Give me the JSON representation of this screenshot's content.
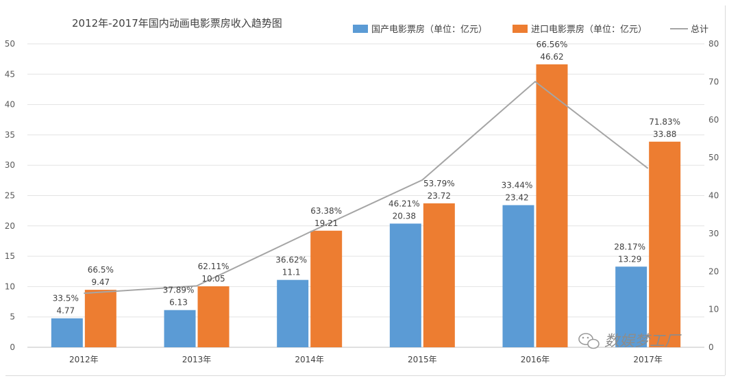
{
  "chart_data": {
    "type": "bar",
    "title": "2012年-2017年国内动画电影票房收入趋势图",
    "categories": [
      "2012年",
      "2013年",
      "2014年",
      "2015年",
      "2016年",
      "2017年"
    ],
    "series": [
      {
        "name": "国产电影票房（单位：亿元）",
        "axis": "left",
        "color": "#5b9bd5",
        "values": [
          4.77,
          6.13,
          11.1,
          20.38,
          23.42,
          13.29
        ],
        "value_labels": [
          "4.77",
          "6.13",
          "11.1",
          "20.38",
          "23.42",
          "13.29"
        ],
        "share_labels": [
          "33.5%",
          "37.89%",
          "36.62%",
          "46.21%",
          "33.44%",
          "28.17%"
        ]
      },
      {
        "name": "进口电影票房（单位：亿元）",
        "axis": "left",
        "color": "#ed7d31",
        "values": [
          9.47,
          10.05,
          19.21,
          23.72,
          46.62,
          33.88
        ],
        "value_labels": [
          "9.47",
          "10.05",
          "19.21",
          "23.72",
          "46.62",
          "33.88"
        ],
        "share_labels": [
          "66.5%",
          "62.11%",
          "63.38%",
          "53.79%",
          "66.56%",
          "71.83%"
        ]
      },
      {
        "name": "总计",
        "type": "line",
        "axis": "right",
        "color": "#a5a5a5",
        "values": [
          14.24,
          16.18,
          30.31,
          44.1,
          70.04,
          47.17
        ]
      }
    ],
    "y_left": {
      "min": 0,
      "max": 50,
      "step": 5,
      "ticks": [
        "0",
        "5",
        "10",
        "15",
        "20",
        "25",
        "30",
        "35",
        "40",
        "45",
        "50"
      ]
    },
    "y_right": {
      "min": 0,
      "max": 80,
      "step": 10,
      "ticks": [
        "0",
        "10",
        "20",
        "30",
        "40",
        "50",
        "60",
        "70",
        "80"
      ]
    },
    "grid": true,
    "legend_position": "top-right"
  },
  "watermark": {
    "text": "数娱梦工厂"
  }
}
